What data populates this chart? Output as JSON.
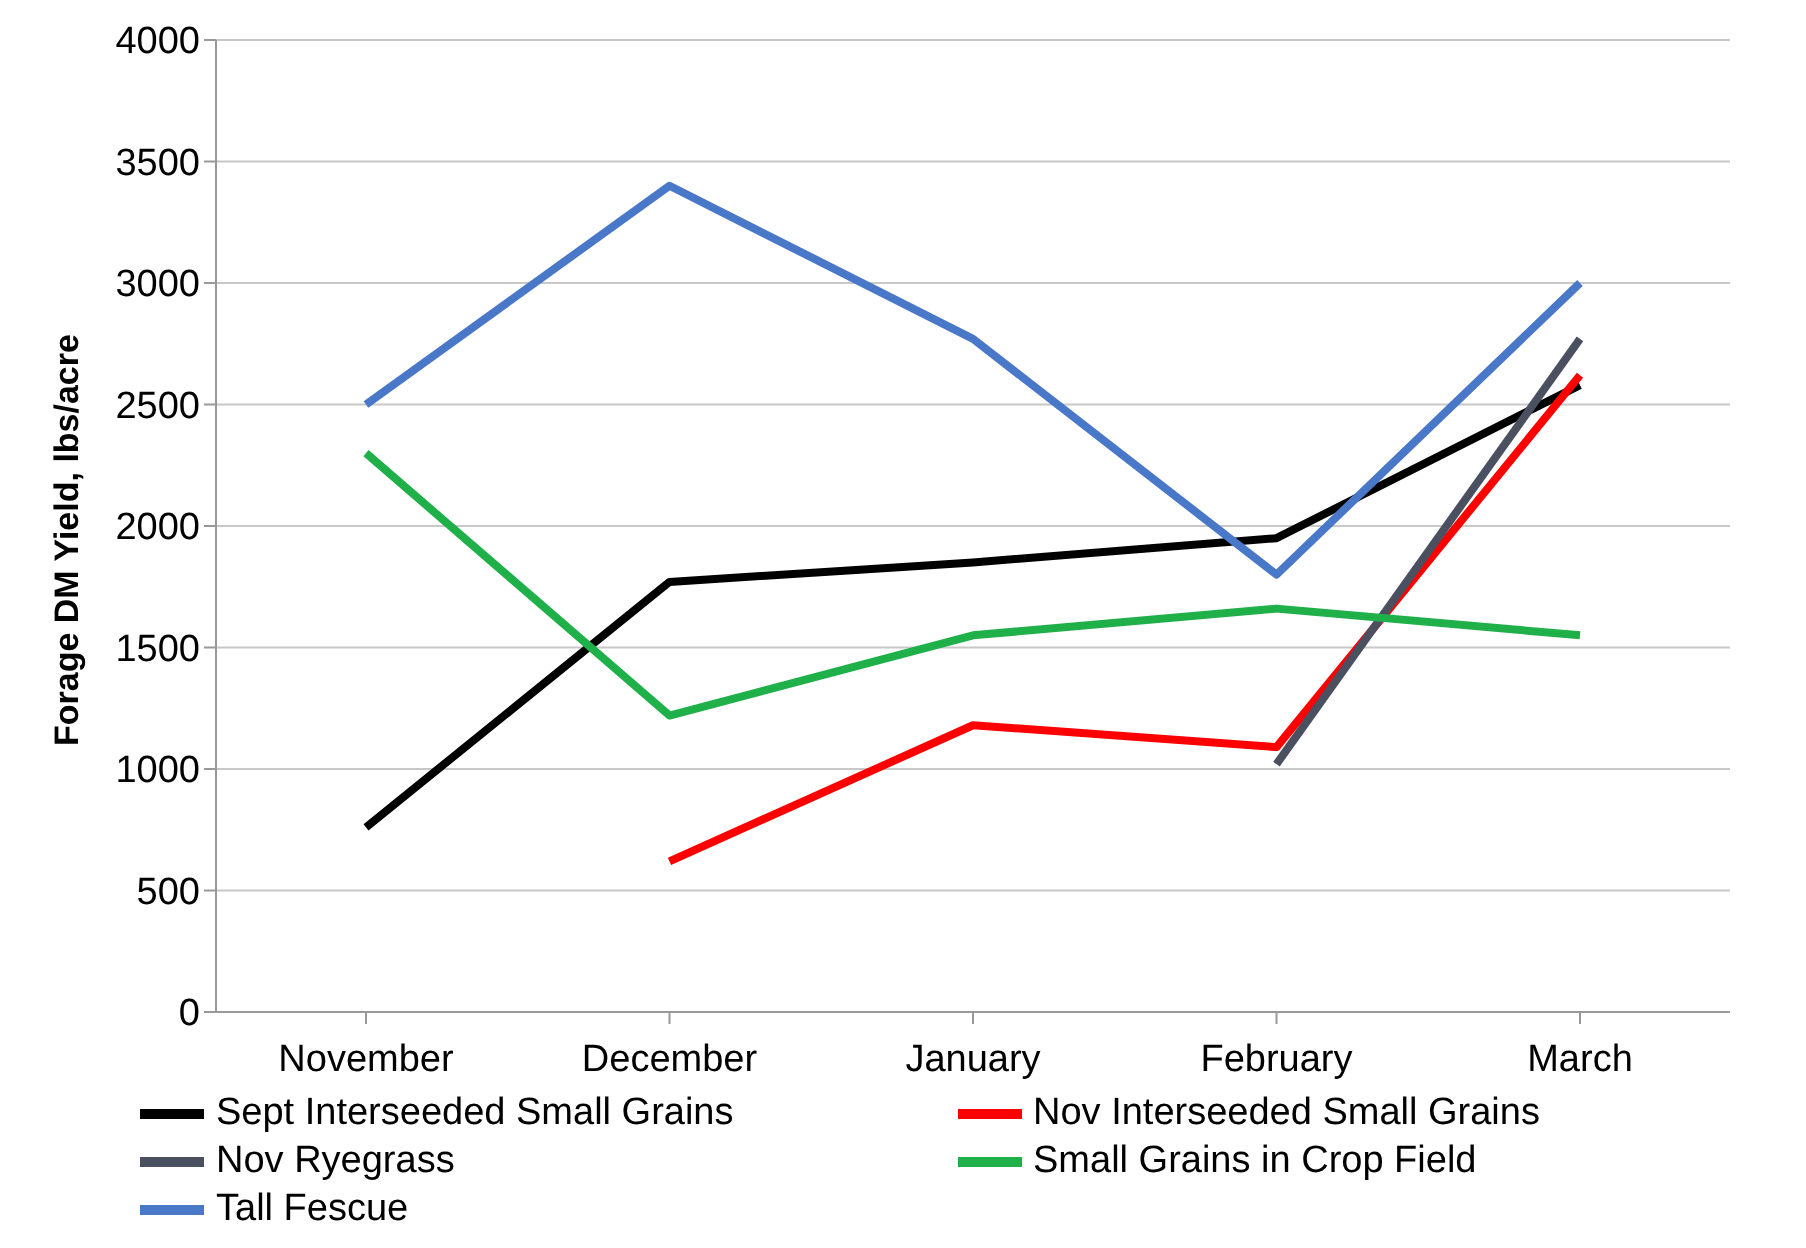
{
  "chart_data": {
    "type": "line",
    "ylabel": "Forage DM Yield, lbs/acre",
    "categories": [
      "November",
      "December",
      "January",
      "February",
      "March"
    ],
    "series": [
      {
        "name": "Sept Interseeded Small Grains",
        "color": "#000000",
        "values": [
          760,
          1770,
          1850,
          1950,
          2580
        ]
      },
      {
        "name": "Nov Interseeded Small Grains",
        "color": "#ff0000",
        "values": [
          null,
          620,
          1180,
          1090,
          2620
        ]
      },
      {
        "name": "Nov Ryegrass",
        "color": "#4a5060",
        "values": [
          null,
          null,
          null,
          1020,
          2770
        ]
      },
      {
        "name": "Small Grains in Crop Field",
        "color": "#1fb04a",
        "values": [
          2300,
          1220,
          1550,
          1660,
          1550
        ]
      },
      {
        "name": "Tall Fescue",
        "color": "#4a78c8",
        "values": [
          2500,
          3400,
          2770,
          1800,
          3000
        ]
      }
    ],
    "ylim": [
      0,
      4000
    ],
    "yticks": [
      0,
      500,
      1000,
      1500,
      2000,
      2500,
      3000,
      3500,
      4000
    ],
    "grid": "y",
    "legend": "bottom",
    "marker": "none",
    "line_style": "solid"
  }
}
